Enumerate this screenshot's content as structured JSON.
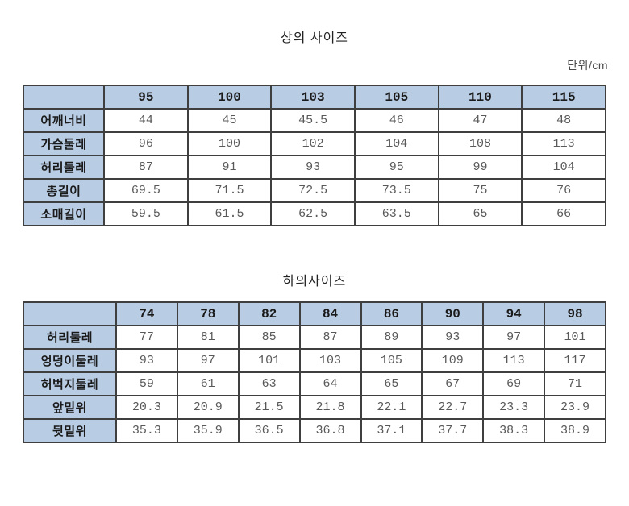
{
  "page": {
    "unit_label": "단위/cm"
  },
  "colors": {
    "header_bg": "#b8cce4",
    "border": "#3f3f3f",
    "body_text": "#595959",
    "header_text": "#1a1a1a",
    "background": "#ffffff"
  },
  "tables": [
    {
      "title": "상의 사이즈",
      "sizes": [
        "95",
        "100",
        "103",
        "105",
        "110",
        "115"
      ],
      "rows": [
        {
          "label": "어깨너비",
          "values": [
            "44",
            "45",
            "45.5",
            "46",
            "47",
            "48"
          ]
        },
        {
          "label": "가슴둘레",
          "values": [
            "96",
            "100",
            "102",
            "104",
            "108",
            "113"
          ]
        },
        {
          "label": "허리둘레",
          "values": [
            "87",
            "91",
            "93",
            "95",
            "99",
            "104"
          ]
        },
        {
          "label": "총길이",
          "values": [
            "69.5",
            "71.5",
            "72.5",
            "73.5",
            "75",
            "76"
          ]
        },
        {
          "label": "소매길이",
          "values": [
            "59.5",
            "61.5",
            "62.5",
            "63.5",
            "65",
            "66"
          ]
        }
      ]
    },
    {
      "title": "하의사이즈",
      "sizes": [
        "74",
        "78",
        "82",
        "84",
        "86",
        "90",
        "94",
        "98"
      ],
      "rows": [
        {
          "label": "허리둘레",
          "values": [
            "77",
            "81",
            "85",
            "87",
            "89",
            "93",
            "97",
            "101"
          ]
        },
        {
          "label": "엉덩이둘레",
          "values": [
            "93",
            "97",
            "101",
            "103",
            "105",
            "109",
            "113",
            "117"
          ]
        },
        {
          "label": "허벅지둘레",
          "values": [
            "59",
            "61",
            "63",
            "64",
            "65",
            "67",
            "69",
            "71"
          ]
        },
        {
          "label": "앞밑위",
          "values": [
            "20.3",
            "20.9",
            "21.5",
            "21.8",
            "22.1",
            "22.7",
            "23.3",
            "23.9"
          ]
        },
        {
          "label": "뒷밑위",
          "values": [
            "35.3",
            "35.9",
            "36.5",
            "36.8",
            "37.1",
            "37.7",
            "38.3",
            "38.9"
          ]
        }
      ]
    }
  ]
}
